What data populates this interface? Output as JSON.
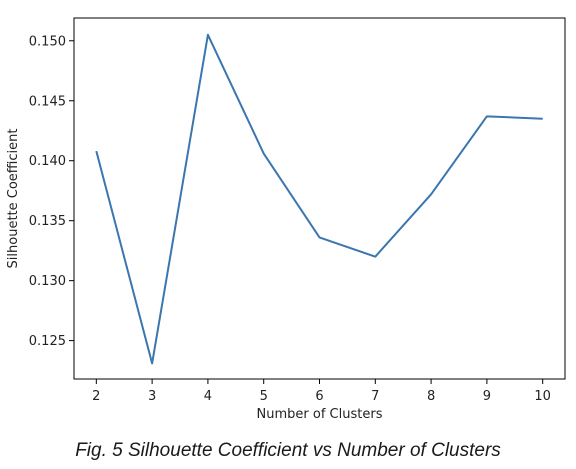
{
  "caption": "Fig. 5 Silhouette Coefficient vs Number of Clusters",
  "chart_data": {
    "type": "line",
    "x": [
      2,
      3,
      4,
      5,
      6,
      7,
      8,
      9,
      10
    ],
    "series": [
      {
        "values": [
          0.1408,
          0.1231,
          0.1505,
          0.1406,
          0.1336,
          0.132,
          0.1372,
          0.1437,
          0.1435
        ]
      }
    ],
    "xlabel": "Number of Clusters",
    "ylabel": "Silhouette Coefficient",
    "xlim": [
      1.6,
      10.4
    ],
    "ylim": [
      0.1218,
      0.1519
    ],
    "x_ticks": [
      "2",
      "3",
      "4",
      "5",
      "6",
      "7",
      "8",
      "9",
      "10"
    ],
    "y_ticks": [
      "0.125",
      "0.130",
      "0.135",
      "0.140",
      "0.145",
      "0.150"
    ],
    "grid": false,
    "line_color": "#3a76af"
  }
}
